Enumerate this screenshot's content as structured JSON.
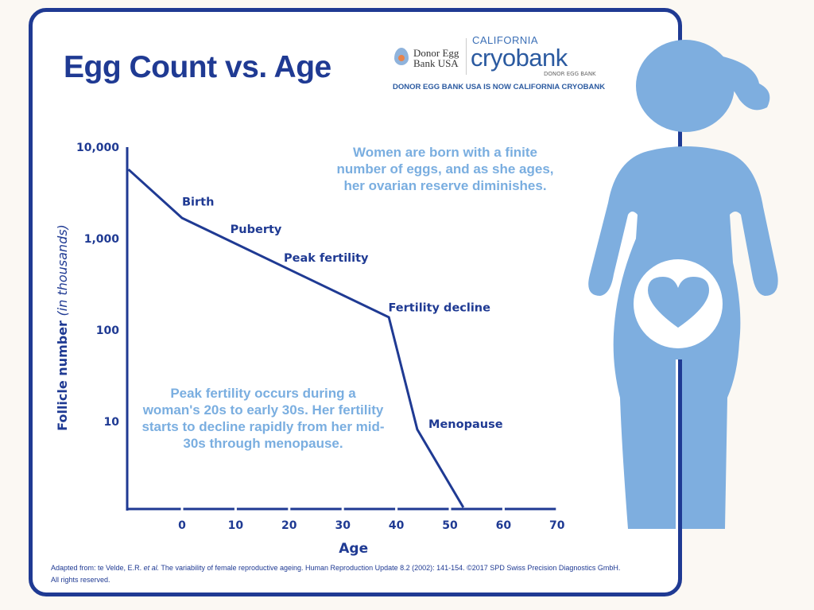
{
  "title": "Egg Count vs. Age",
  "logo": {
    "left_brand_line1": "Donor Egg",
    "left_brand_line2": "Bank USA",
    "right_brand_top": "CALIFORNIA",
    "right_brand_main": "cryobank",
    "right_brand_sub": "DONOR EGG BANK",
    "tagline": "DONOR EGG BANK USA IS NOW CALIFORNIA CRYOBANK"
  },
  "notes": {
    "top": "Women are born with a finite number of eggs, and as she ages, her ovarian reserve diminishes.",
    "bottom": "Peak fertility occurs during a woman's 20s to early 30s. Her fertility starts to decline rapidly from her mid-30s through menopause."
  },
  "footer": {
    "line1_prefix": "Adapted from: te Velde, E.R. ",
    "line1_italic": "et al.",
    "line1_suffix": " The variability of female reproductive ageing.  Human Reproduction Update 8.2 (2002): 141-154.  ©2017 SPD Swiss Precision Diagnostics GmbH.",
    "line2": "All rights reserved."
  },
  "colors": {
    "primary": "#1f3a93",
    "accent_light": "#7aaee0",
    "silhouette": "#7eaedf"
  },
  "chart_data": {
    "type": "line",
    "title": "",
    "xlabel": "Age",
    "ylabel": "Follicle number",
    "ylabel_italic": "(in thousands)",
    "yscale": "log",
    "xlim": [
      -10,
      70
    ],
    "ylim": [
      1.1,
      10000
    ],
    "grid": false,
    "x_ticks": [
      0,
      10,
      20,
      30,
      40,
      50,
      60,
      70
    ],
    "x_tick_labels": [
      "0",
      "10",
      "20",
      "30",
      "40",
      "50",
      "60",
      "70"
    ],
    "y_ticks": [
      10000,
      1000,
      100,
      10
    ],
    "y_tick_labels": [
      "10,000",
      "1,000",
      "100",
      "10"
    ],
    "series": [
      {
        "x": [
          -10,
          0,
          38.6,
          43.9,
          52.5
        ],
        "y": [
          5700,
          1680,
          138,
          8.2,
          1.15
        ]
      }
    ],
    "annotations": [
      {
        "text": "Birth",
        "x": 0,
        "y": 2300
      },
      {
        "text": "Puberty",
        "x": 9,
        "y": 1150
      },
      {
        "text": "Peak fertility",
        "x": 19,
        "y": 560
      },
      {
        "text": "Fertility decline",
        "x": 38.5,
        "y": 160
      },
      {
        "text": "Menopause",
        "x": 46,
        "y": 8.5
      }
    ]
  }
}
